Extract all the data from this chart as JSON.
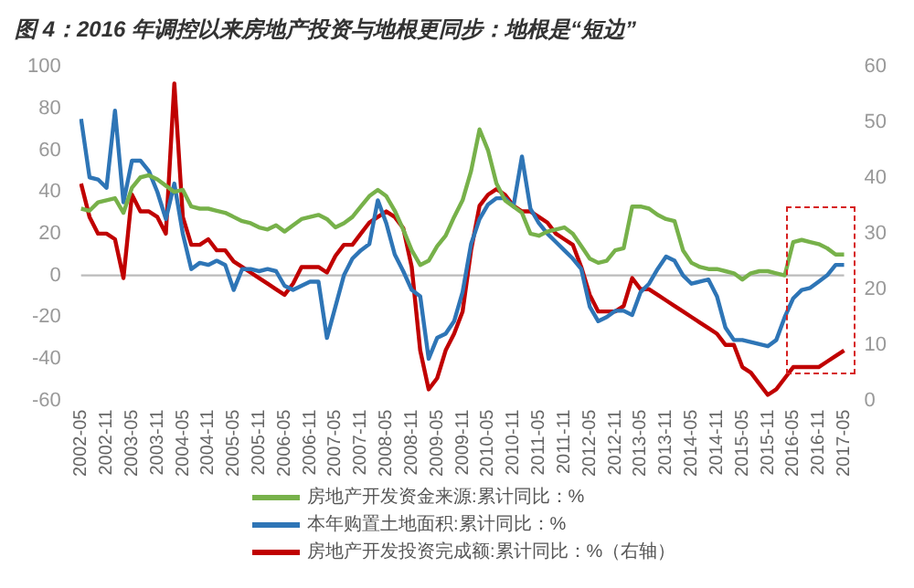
{
  "chart_data": {
    "type": "line",
    "title": "图 4：2016 年调控以来房地产投资与地根更同步：地根是“短边”",
    "categories": [
      "2002-05",
      null,
      null,
      "2002-11",
      null,
      null,
      "2003-05",
      null,
      null,
      "2003-11",
      null,
      null,
      "2004-05",
      null,
      null,
      "2004-11",
      null,
      null,
      "2005-05",
      null,
      null,
      "2005-11",
      null,
      null,
      "2006-05",
      null,
      null,
      "2006-11",
      null,
      null,
      "2007-05",
      null,
      null,
      "2007-11",
      null,
      null,
      "2008-05",
      null,
      null,
      "2008-11",
      null,
      null,
      "2009-05",
      null,
      null,
      "2009-11",
      null,
      null,
      "2010-05",
      null,
      null,
      "2010-11",
      null,
      null,
      "2011-05",
      null,
      null,
      "2011-11",
      null,
      null,
      "2012-05",
      null,
      null,
      "2012-11",
      null,
      null,
      "2013-05",
      null,
      null,
      "2013-11",
      null,
      null,
      "2014-05",
      null,
      null,
      "2014-11",
      null,
      null,
      "2015-05",
      null,
      null,
      "2015-11",
      null,
      null,
      "2016-05",
      null,
      null,
      "2016-11",
      null,
      null,
      "2017-05"
    ],
    "series": [
      {
        "name": "房地产开发资金来源:累计同比：%",
        "color": "#77b14a",
        "values": [
          32,
          31,
          35,
          36,
          37,
          30,
          42,
          47,
          48,
          46,
          43,
          40,
          41,
          33,
          32,
          32,
          31,
          30,
          28,
          26,
          25,
          23,
          22,
          24,
          21,
          24,
          27,
          28,
          29,
          27,
          23,
          25,
          28,
          33,
          38,
          41,
          38,
          31,
          22,
          12,
          5,
          7,
          14,
          19,
          28,
          36,
          50,
          70,
          60,
          44,
          36,
          33,
          30,
          20,
          19,
          21,
          22,
          23,
          20,
          14,
          8,
          6,
          7,
          12,
          13,
          33,
          33,
          32,
          29,
          27,
          26,
          12,
          6,
          4,
          3,
          3,
          2,
          1,
          -2,
          1,
          2,
          2,
          1,
          0,
          16,
          17,
          16,
          15,
          13,
          10,
          10
        ]
      },
      {
        "name": "本年购置土地面积:累计同比：%",
        "color": "#2e75b6",
        "values": [
          75,
          47,
          46,
          42,
          79,
          35,
          55,
          55,
          50,
          40,
          27,
          44,
          20,
          3,
          6,
          5,
          7,
          5,
          -7,
          3,
          3,
          2,
          3,
          2,
          -5,
          -7,
          -5,
          -3,
          -3,
          -30,
          -15,
          0,
          8,
          12,
          15,
          36,
          25,
          10,
          2,
          -7,
          -10,
          -40,
          -30,
          -28,
          -22,
          -8,
          15,
          27,
          34,
          37,
          37,
          33,
          57,
          32,
          25,
          20,
          16,
          12,
          8,
          3,
          -15,
          -22,
          -20,
          -17,
          -17,
          -19,
          -8,
          -4,
          3,
          9,
          7,
          0,
          -4,
          -3,
          -2,
          -10,
          -25,
          -31,
          -31,
          -32,
          -33,
          -34,
          -31,
          -20,
          -11,
          -7,
          -6,
          -3,
          0,
          5,
          5
        ]
      },
      {
        "name": "房地产开发投资完成额:累计同比：%（右轴）",
        "color": "#c00000",
        "axis": "y2",
        "values": [
          39,
          33,
          30,
          30,
          29,
          22,
          37,
          34,
          34,
          33,
          30,
          57,
          33,
          28,
          28,
          29,
          27,
          27,
          25,
          24,
          23,
          22,
          21,
          20,
          19,
          21,
          24,
          24,
          24,
          23,
          26,
          28,
          28,
          30,
          32,
          33,
          34,
          33,
          31,
          24,
          9,
          2,
          4,
          9,
          12,
          16,
          27,
          35,
          37,
          38,
          37,
          35,
          34,
          34,
          33,
          32,
          30,
          29,
          28,
          24,
          19,
          16,
          16,
          16,
          17,
          22,
          20,
          20,
          19,
          18,
          17,
          16,
          15,
          14,
          13,
          12,
          10,
          10,
          6,
          5,
          3,
          1,
          2,
          4,
          6,
          6,
          6,
          6,
          7,
          8,
          9
        ]
      }
    ],
    "ylim": [
      -60,
      100
    ],
    "yticks": [
      -60,
      -40,
      -20,
      0,
      20,
      40,
      60,
      80,
      100
    ],
    "y2lim": [
      0,
      60
    ],
    "y2ticks": [
      0,
      10,
      20,
      30,
      40,
      50,
      60
    ],
    "ref_lines": [
      {
        "axis": "y",
        "value": 0,
        "color": "#bbbbbb"
      }
    ],
    "grid": false,
    "legend": "bottom",
    "marker": "none",
    "line_style": "solid"
  }
}
